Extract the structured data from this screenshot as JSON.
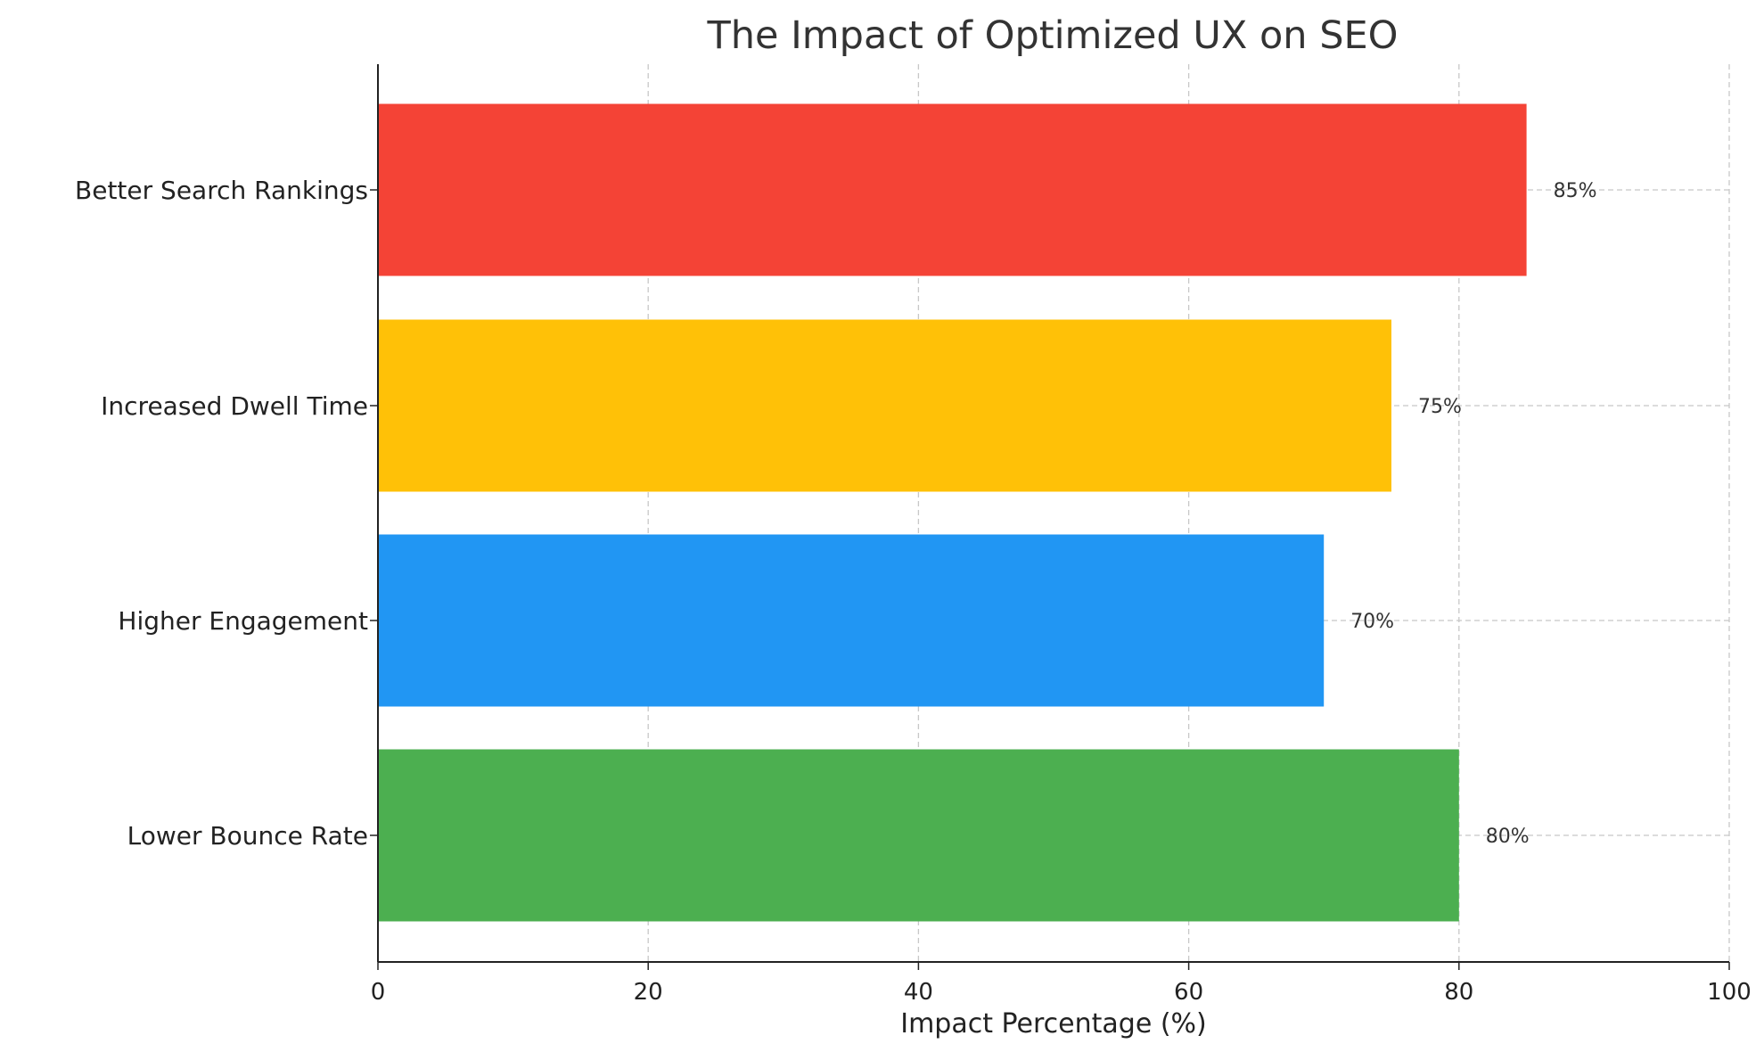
{
  "chart_data": {
    "type": "bar",
    "orientation": "horizontal",
    "title": "The Impact of Optimized UX on SEO",
    "xlabel": "Impact Percentage (%)",
    "ylabel": "",
    "xlim": [
      0,
      100
    ],
    "xticks": [
      "0",
      "20",
      "40",
      "60",
      "80",
      "100"
    ],
    "grid": true,
    "categories": [
      "Lower Bounce Rate",
      "Higher Engagement",
      "Increased Dwell Time",
      "Better Search Rankings"
    ],
    "values": [
      80,
      70,
      75,
      85
    ],
    "data_labels": [
      "80%",
      "70%",
      "75%",
      "85%"
    ],
    "colors": [
      "#4caf50",
      "#2196f3",
      "#ffc107",
      "#f44336"
    ]
  }
}
